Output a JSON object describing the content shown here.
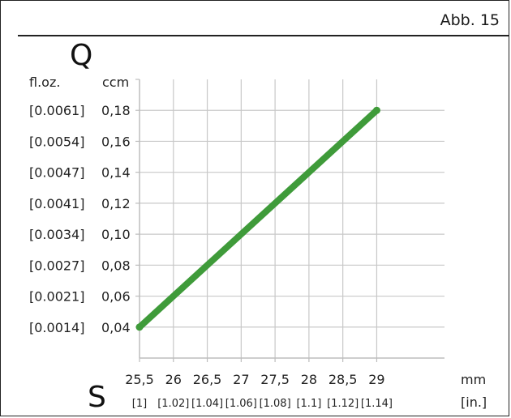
{
  "figure_label": "Abb. 15",
  "chart_data": {
    "type": "line",
    "y_axis_symbol": "Q",
    "x_axis_symbol": "S",
    "y_unit_primary": "ccm",
    "y_unit_secondary": "fl.oz.",
    "x_unit_primary": "mm",
    "x_unit_secondary": "[in.]",
    "x_ticks": [
      25.5,
      26,
      26.5,
      27,
      27.5,
      28,
      28.5,
      29
    ],
    "x_tick_labels": [
      "25,5",
      "26",
      "26,5",
      "27",
      "27,5",
      "28",
      "28,5",
      "29"
    ],
    "x_tick_labels_secondary": [
      "[1]",
      "[1.02]",
      "[1.04]",
      "[1.06]",
      "[1.08]",
      "[1.1]",
      "[1.12]",
      "[1.14]"
    ],
    "y_ticks": [
      0.04,
      0.06,
      0.08,
      0.1,
      0.12,
      0.14,
      0.16,
      0.18
    ],
    "y_tick_labels": [
      "0,04",
      "0,06",
      "0,08",
      "0,10",
      "0,12",
      "0,14",
      "0,16",
      "0,18"
    ],
    "y_tick_labels_secondary": [
      "[0.0014]",
      "[0.0021]",
      "[0.0027]",
      "[0.0034]",
      "[0.0041]",
      "[0.0047]",
      "[0.0054]",
      "[0.0061]"
    ],
    "xlim": [
      25.5,
      30.0
    ],
    "ylim": [
      0.02,
      0.2
    ],
    "grid": true,
    "series": [
      {
        "x": [
          25.5,
          29
        ],
        "y": [
          0.04,
          0.18
        ],
        "color": "#3f9b3a"
      }
    ]
  }
}
